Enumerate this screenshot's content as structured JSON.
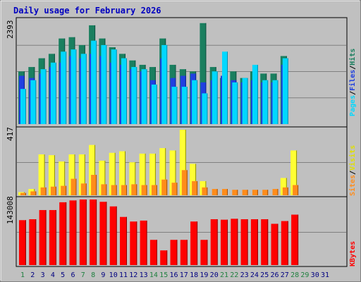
{
  "title": "Daily usage for February 2026",
  "colors": {
    "background": "#c0c0c0",
    "plot_bg": "#c0c0c0",
    "hits": "#1a7f5f",
    "files": "#2040e0",
    "pages": "#00d8ff",
    "visits": "#ffff33",
    "sites": "#ff8c1a",
    "kbytes": "#ff0000",
    "title": "#0000c0",
    "weekend_label": "#208040",
    "weekday_label": "#000080"
  },
  "panels": {
    "top": {
      "max_label": "2393",
      "legend": [
        {
          "text": "Hits",
          "color": "#1a7f5f"
        },
        {
          "text": "/",
          "color": "#000000"
        },
        {
          "text": "Files",
          "color": "#2040e0"
        },
        {
          "text": "/",
          "color": "#000000"
        },
        {
          "text": "Pages",
          "color": "#00d8ff"
        }
      ]
    },
    "mid": {
      "max_label": "417",
      "legend": [
        {
          "text": "Visits",
          "color": "#e0e000"
        },
        {
          "text": "/",
          "color": "#000000"
        },
        {
          "text": "Sites",
          "color": "#ff8c1a"
        }
      ]
    },
    "bottom": {
      "max_label": "143008",
      "legend": [
        {
          "text": "KBytes",
          "color": "#ff0000"
        }
      ]
    }
  },
  "chart_data": {
    "type": "bar",
    "title": "Daily usage for February 2026",
    "categories": [
      "1",
      "2",
      "3",
      "4",
      "5",
      "6",
      "7",
      "8",
      "9",
      "10",
      "11",
      "12",
      "13",
      "14",
      "15",
      "16",
      "17",
      "18",
      "19",
      "20",
      "21",
      "22",
      "23",
      "24",
      "25",
      "26",
      "27",
      "28",
      "29",
      "30",
      "31"
    ],
    "weekend_days": [
      "1",
      "7",
      "8",
      "14",
      "15",
      "21",
      "22",
      "28",
      "29"
    ],
    "series": [
      {
        "name": "Hits",
        "panel": "top",
        "ymax": 2393,
        "values": [
          1200,
          1300,
          1500,
          1600,
          1950,
          1980,
          1800,
          2250,
          1950,
          1750,
          1600,
          1450,
          1350,
          1300,
          1950,
          1350,
          1250,
          1200,
          2300,
          1300,
          1050,
          1200,
          1050,
          1200,
          1150,
          1150,
          1550,
          0,
          0,
          0,
          0
        ]
      },
      {
        "name": "Files",
        "panel": "top",
        "ymax": 2393,
        "values": [
          1100,
          1050,
          1150,
          1300,
          1400,
          1550,
          1500,
          1600,
          1550,
          1400,
          1350,
          1250,
          1200,
          1000,
          1500,
          1050,
          1100,
          1150,
          950,
          1000,
          1100,
          1000,
          950,
          1000,
          950,
          950,
          1350,
          0,
          0,
          0,
          0
        ]
      },
      {
        "name": "Pages",
        "panel": "top",
        "ymax": 2393,
        "values": [
          800,
          1000,
          1250,
          1400,
          1650,
          1700,
          1600,
          1900,
          1800,
          1700,
          1500,
          1300,
          1250,
          900,
          1800,
          850,
          850,
          1000,
          700,
          1200,
          1650,
          950,
          1050,
          1350,
          1000,
          1000,
          1500,
          0,
          0,
          0,
          0
        ]
      },
      {
        "name": "Visits",
        "panel": "mid",
        "ymax": 417,
        "values": [
          20,
          40,
          260,
          255,
          215,
          260,
          260,
          320,
          220,
          270,
          280,
          210,
          265,
          265,
          300,
          285,
          417,
          200,
          90,
          0,
          0,
          0,
          0,
          0,
          0,
          0,
          110,
          285,
          0,
          0,
          0
        ]
      },
      {
        "name": "Sites",
        "panel": "mid",
        "ymax": 417,
        "values": [
          15,
          25,
          50,
          55,
          60,
          105,
          75,
          130,
          70,
          65,
          65,
          70,
          65,
          65,
          100,
          80,
          160,
          90,
          50,
          40,
          40,
          35,
          35,
          35,
          35,
          40,
          50,
          65,
          0,
          0,
          0
        ]
      },
      {
        "name": "KBytes",
        "panel": "bottom",
        "ymax": 143008,
        "values": [
          98000,
          100000,
          120000,
          120000,
          137000,
          141000,
          143008,
          143008,
          138000,
          128000,
          105000,
          95000,
          97000,
          55000,
          32000,
          55000,
          55000,
          95000,
          55000,
          100000,
          99000,
          101000,
          100000,
          100000,
          100000,
          90000,
          96000,
          110000,
          0,
          0,
          0
        ]
      }
    ]
  }
}
